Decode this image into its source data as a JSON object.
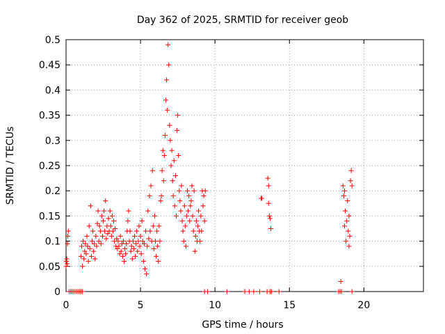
{
  "chart_data": {
    "type": "scatter",
    "title": "Day 362 of 2025, SRMTID for receiver geob",
    "xlabel": "GPS time / hours",
    "ylabel": "SRMTID / TECUs",
    "xlim": [
      0,
      24
    ],
    "ylim": [
      0,
      0.5
    ],
    "x_ticks": [
      0,
      5,
      10,
      15,
      20
    ],
    "y_ticks": [
      0,
      0.05,
      0.1,
      0.15,
      0.2,
      0.25,
      0.3,
      0.35,
      0.4,
      0.45,
      0.5
    ],
    "x_tick_labels": [
      "0",
      "5",
      "10",
      "15",
      "20"
    ],
    "y_tick_labels": [
      "0",
      "0.05",
      "0.1",
      "0.15",
      "0.2",
      "0.25",
      "0.3",
      "0.35",
      "0.4",
      "0.45",
      "0.5"
    ],
    "grid": true,
    "marker": "+",
    "color": "#ff0000",
    "series": [
      {
        "name": "SRMTID",
        "points": [
          [
            0.0,
            0.05
          ],
          [
            0.02,
            0.06
          ],
          [
            0.05,
            0.065
          ],
          [
            0.08,
            0.055
          ],
          [
            0.1,
            0.095
          ],
          [
            0.12,
            0.11
          ],
          [
            0.15,
            0.12
          ],
          [
            0.2,
            0.0
          ],
          [
            0.3,
            0.0
          ],
          [
            0.4,
            0.0
          ],
          [
            0.5,
            0.0
          ],
          [
            0.6,
            0.0
          ],
          [
            0.7,
            0.0
          ],
          [
            0.8,
            0.0
          ],
          [
            0.9,
            0.0
          ],
          [
            1.0,
            0.0
          ],
          [
            1.1,
            0.0
          ],
          [
            1.0,
            0.07
          ],
          [
            1.05,
            0.09
          ],
          [
            1.1,
            0.05
          ],
          [
            1.15,
            0.1
          ],
          [
            1.2,
            0.065
          ],
          [
            1.25,
            0.08
          ],
          [
            1.3,
            0.095
          ],
          [
            1.35,
            0.075
          ],
          [
            1.4,
            0.11
          ],
          [
            1.45,
            0.09
          ],
          [
            1.5,
            0.06
          ],
          [
            1.55,
            0.13
          ],
          [
            1.6,
            0.085
          ],
          [
            1.65,
            0.17
          ],
          [
            1.7,
            0.07
          ],
          [
            1.75,
            0.1
          ],
          [
            1.8,
            0.12
          ],
          [
            1.85,
            0.08
          ],
          [
            1.9,
            0.095
          ],
          [
            1.95,
            0.065
          ],
          [
            2.0,
            0.11
          ],
          [
            2.05,
            0.09
          ],
          [
            2.1,
            0.135
          ],
          [
            2.15,
            0.16
          ],
          [
            2.2,
            0.1
          ],
          [
            2.25,
            0.13
          ],
          [
            2.3,
            0.12
          ],
          [
            2.35,
            0.095
          ],
          [
            2.4,
            0.15
          ],
          [
            2.45,
            0.11
          ],
          [
            2.5,
            0.14
          ],
          [
            2.55,
            0.16
          ],
          [
            2.6,
            0.12
          ],
          [
            2.65,
            0.18
          ],
          [
            2.7,
            0.105
          ],
          [
            2.75,
            0.13
          ],
          [
            2.8,
            0.115
          ],
          [
            2.85,
            0.145
          ],
          [
            2.9,
            0.12
          ],
          [
            2.95,
            0.16
          ],
          [
            3.0,
            0.13
          ],
          [
            3.05,
            0.11
          ],
          [
            3.1,
            0.15
          ],
          [
            3.15,
            0.12
          ],
          [
            3.2,
            0.14
          ],
          [
            3.25,
            0.1
          ],
          [
            3.3,
            0.125
          ],
          [
            3.35,
            0.09
          ],
          [
            3.4,
            0.105
          ],
          [
            3.45,
            0.085
          ],
          [
            3.5,
            0.1
          ],
          [
            3.55,
            0.09
          ],
          [
            3.6,
            0.075
          ],
          [
            3.65,
            0.11
          ],
          [
            3.7,
            0.08
          ],
          [
            3.75,
            0.095
          ],
          [
            3.8,
            0.07
          ],
          [
            3.85,
            0.1
          ],
          [
            3.9,
            0.06
          ],
          [
            3.95,
            0.085
          ],
          [
            4.0,
            0.075
          ],
          [
            4.05,
            0.095
          ],
          [
            4.1,
            0.12
          ],
          [
            4.15,
            0.14
          ],
          [
            4.2,
            0.16
          ],
          [
            4.25,
            0.1
          ],
          [
            4.3,
            0.12
          ],
          [
            4.35,
            0.08
          ],
          [
            4.4,
            0.09
          ],
          [
            4.45,
            0.065
          ],
          [
            4.5,
            0.1
          ],
          [
            4.55,
            0.085
          ],
          [
            4.6,
            0.11
          ],
          [
            4.65,
            0.07
          ],
          [
            4.7,
            0.095
          ],
          [
            4.75,
            0.12
          ],
          [
            4.8,
            0.08
          ],
          [
            4.85,
            0.1
          ],
          [
            4.9,
            0.13
          ],
          [
            4.95,
            0.09
          ],
          [
            5.0,
            0.11
          ],
          [
            5.05,
            0.075
          ],
          [
            5.1,
            0.14
          ],
          [
            5.15,
            0.1
          ],
          [
            5.2,
            0.06
          ],
          [
            5.25,
            0.095
          ],
          [
            5.3,
            0.045
          ],
          [
            5.35,
            0.12
          ],
          [
            5.4,
            0.035
          ],
          [
            5.45,
            0.09
          ],
          [
            5.5,
            0.16
          ],
          [
            5.55,
            0.105
          ],
          [
            5.6,
            0.19
          ],
          [
            5.65,
            0.12
          ],
          [
            5.7,
            0.21
          ],
          [
            5.75,
            0.1
          ],
          [
            5.8,
            0.24
          ],
          [
            5.85,
            0.13
          ],
          [
            5.9,
            0.085
          ],
          [
            5.95,
            0.15
          ],
          [
            6.0,
            0.1
          ],
          [
            6.05,
            0.07
          ],
          [
            6.1,
            0.12
          ],
          [
            6.15,
            0.09
          ],
          [
            6.2,
            0.06
          ],
          [
            6.25,
            0.13
          ],
          [
            6.3,
            0.1
          ],
          [
            6.35,
            0.18
          ],
          [
            6.4,
            0.19
          ],
          [
            6.45,
            0.24
          ],
          [
            6.5,
            0.28
          ],
          [
            6.55,
            0.22
          ],
          [
            6.6,
            0.27
          ],
          [
            6.65,
            0.31
          ],
          [
            6.7,
            0.38
          ],
          [
            6.75,
            0.42
          ],
          [
            6.8,
            0.36
          ],
          [
            6.85,
            0.49
          ],
          [
            6.9,
            0.45
          ],
          [
            6.95,
            0.33
          ],
          [
            7.0,
            0.3
          ],
          [
            7.05,
            0.25
          ],
          [
            7.1,
            0.28
          ],
          [
            7.15,
            0.22
          ],
          [
            7.2,
            0.19
          ],
          [
            7.25,
            0.26
          ],
          [
            7.3,
            0.17
          ],
          [
            7.35,
            0.23
          ],
          [
            7.4,
            0.15
          ],
          [
            7.45,
            0.32
          ],
          [
            7.5,
            0.35
          ],
          [
            7.55,
            0.27
          ],
          [
            7.6,
            0.2
          ],
          [
            7.65,
            0.18
          ],
          [
            7.7,
            0.16
          ],
          [
            7.75,
            0.21
          ],
          [
            7.8,
            0.14
          ],
          [
            7.85,
            0.12
          ],
          [
            7.9,
            0.1
          ],
          [
            7.95,
            0.17
          ],
          [
            8.0,
            0.13
          ],
          [
            8.05,
            0.09
          ],
          [
            8.1,
            0.15
          ],
          [
            8.15,
            0.2
          ],
          [
            8.2,
            0.16
          ],
          [
            8.25,
            0.19
          ],
          [
            8.3,
            0.14
          ],
          [
            8.35,
            0.17
          ],
          [
            8.4,
            0.18
          ],
          [
            8.45,
            0.21
          ],
          [
            8.5,
            0.15
          ],
          [
            8.55,
            0.12
          ],
          [
            8.6,
            0.2
          ],
          [
            8.65,
            0.08
          ],
          [
            8.7,
            0.11
          ],
          [
            8.75,
            0.14
          ],
          [
            8.8,
            0.1
          ],
          [
            8.85,
            0.13
          ],
          [
            8.9,
            0.16
          ],
          [
            8.95,
            0.12
          ],
          [
            9.0,
            0.1
          ],
          [
            9.05,
            0.15
          ],
          [
            9.1,
            0.12
          ],
          [
            9.15,
            0.2
          ],
          [
            9.2,
            0.17
          ],
          [
            9.25,
            0.19
          ],
          [
            9.3,
            0.14
          ],
          [
            9.35,
            0.2
          ],
          [
            9.3,
            0.0
          ],
          [
            9.5,
            0.0
          ],
          [
            10.8,
            0.0
          ],
          [
            12.0,
            0.0
          ],
          [
            12.3,
            0.0
          ],
          [
            12.6,
            0.0
          ],
          [
            13.0,
            0.0
          ],
          [
            13.5,
            0.0
          ],
          [
            13.7,
            0.0
          ],
          [
            13.8,
            0.0
          ],
          [
            14.3,
            0.0
          ],
          [
            18.3,
            0.0
          ],
          [
            18.4,
            0.0
          ],
          [
            18.5,
            0.0
          ],
          [
            19.2,
            0.0
          ],
          [
            13.1,
            0.185
          ],
          [
            13.15,
            0.185
          ],
          [
            13.55,
            0.225
          ],
          [
            13.6,
            0.21
          ],
          [
            13.65,
            0.15
          ],
          [
            13.7,
            0.145
          ],
          [
            13.75,
            0.125
          ],
          [
            13.6,
            0.175
          ],
          [
            18.45,
            0.02
          ],
          [
            18.6,
            0.21
          ],
          [
            18.65,
            0.19
          ],
          [
            18.7,
            0.13
          ],
          [
            18.75,
            0.16
          ],
          [
            18.8,
            0.1
          ],
          [
            18.85,
            0.14
          ],
          [
            18.9,
            0.18
          ],
          [
            18.95,
            0.12
          ],
          [
            19.0,
            0.09
          ],
          [
            19.05,
            0.11
          ],
          [
            19.1,
            0.22
          ],
          [
            19.15,
            0.24
          ],
          [
            19.2,
            0.21
          ],
          [
            19.0,
            0.15
          ],
          [
            18.7,
            0.2
          ]
        ]
      }
    ]
  }
}
